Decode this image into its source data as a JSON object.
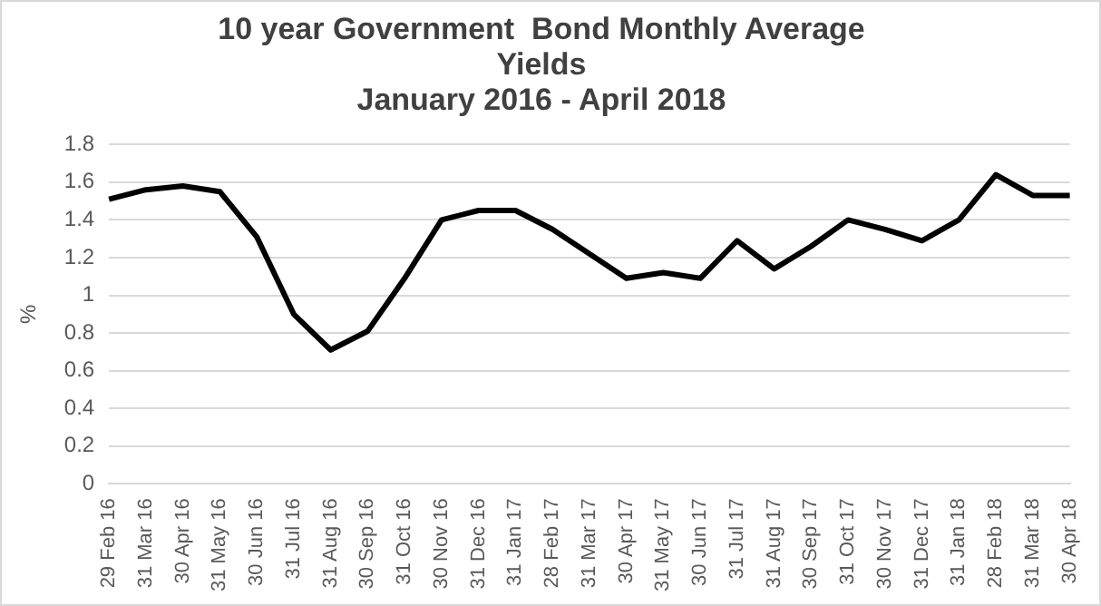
{
  "chart_data": {
    "type": "line",
    "title": [
      "10 year Government  Bond Monthly Average",
      "Yields",
      "January 2016 - April 2018"
    ],
    "ylabel": "%",
    "categories": [
      "29 Feb 16",
      "31 Mar 16",
      "30 Apr 16",
      "31 May 16",
      "30 Jun 16",
      "31 Jul 16",
      "31 Aug 16",
      "30 Sep 16",
      "31 Oct 16",
      "30 Nov 16",
      "31 Dec 16",
      "31 Jan 17",
      "28 Feb 17",
      "31 Mar 17",
      "30 Apr 17",
      "31 May 17",
      "30 Jun 17",
      "31 Jul 17",
      "31 Aug 17",
      "30 Sep 17",
      "31 Oct 17",
      "30 Nov 17",
      "31 Dec 17",
      "31 Jan 18",
      "28 Feb 18",
      "31 Mar 18",
      "30 Apr 18"
    ],
    "series": [
      {
        "color": "#000000",
        "values": [
          1.51,
          1.56,
          1.58,
          1.55,
          1.31,
          0.9,
          0.71,
          0.81,
          1.09,
          1.4,
          1.45,
          1.45,
          1.35,
          1.22,
          1.09,
          1.12,
          1.09,
          1.29,
          1.14,
          1.26,
          1.4,
          1.35,
          1.29,
          1.4,
          1.64,
          1.53,
          1.53
        ]
      }
    ],
    "ylim": [
      0,
      1.8
    ],
    "yticks": [
      0,
      0.2,
      0.4,
      0.6,
      0.8,
      1,
      1.2,
      1.4,
      1.6,
      1.8
    ],
    "grid": "y",
    "legend": false,
    "marker": "none",
    "line_style": "solid"
  }
}
